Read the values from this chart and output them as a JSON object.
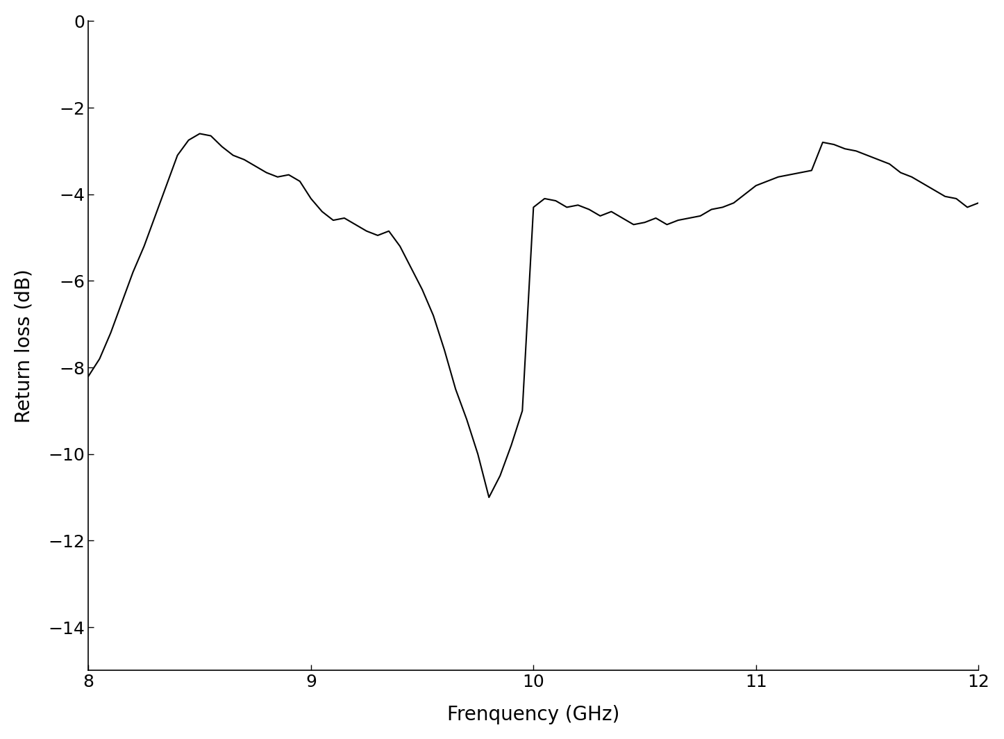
{
  "x": [
    8.0,
    8.05,
    8.1,
    8.15,
    8.2,
    8.25,
    8.3,
    8.35,
    8.4,
    8.45,
    8.5,
    8.55,
    8.6,
    8.65,
    8.7,
    8.75,
    8.8,
    8.85,
    8.9,
    8.95,
    9.0,
    9.05,
    9.1,
    9.15,
    9.2,
    9.25,
    9.3,
    9.35,
    9.4,
    9.45,
    9.5,
    9.55,
    9.6,
    9.65,
    9.7,
    9.75,
    9.8,
    9.85,
    9.9,
    9.95,
    10.0,
    10.05,
    10.1,
    10.15,
    10.2,
    10.25,
    10.3,
    10.35,
    10.4,
    10.45,
    10.5,
    10.55,
    10.6,
    10.65,
    10.7,
    10.75,
    10.8,
    10.85,
    10.9,
    10.95,
    11.0,
    11.05,
    11.1,
    11.15,
    11.2,
    11.25,
    11.3,
    11.35,
    11.4,
    11.45,
    11.5,
    11.55,
    11.6,
    11.65,
    11.7,
    11.75,
    11.8,
    11.85,
    11.9,
    11.95,
    12.0
  ],
  "y": [
    -8.2,
    -7.8,
    -7.2,
    -6.5,
    -5.8,
    -5.2,
    -4.5,
    -3.8,
    -3.1,
    -2.75,
    -2.6,
    -2.65,
    -2.9,
    -3.1,
    -3.2,
    -3.35,
    -3.5,
    -3.6,
    -3.55,
    -3.7,
    -4.1,
    -4.4,
    -4.6,
    -4.55,
    -4.7,
    -4.85,
    -4.95,
    -4.85,
    -5.2,
    -5.7,
    -6.2,
    -6.8,
    -7.6,
    -8.5,
    -9.2,
    -10.0,
    -11.0,
    -10.5,
    -9.8,
    -9.0,
    -4.3,
    -4.1,
    -4.15,
    -4.3,
    -4.25,
    -4.35,
    -4.5,
    -4.4,
    -4.55,
    -4.7,
    -4.65,
    -4.55,
    -4.7,
    -4.6,
    -4.55,
    -4.5,
    -4.35,
    -4.3,
    -4.2,
    -4.0,
    -3.8,
    -3.7,
    -3.6,
    -3.55,
    -3.5,
    -3.45,
    -2.8,
    -2.85,
    -2.95,
    -3.0,
    -3.1,
    -3.2,
    -3.3,
    -3.5,
    -3.6,
    -3.75,
    -3.9,
    -4.05,
    -4.1,
    -4.3,
    -4.2
  ],
  "xlabel": "Frenquency (GHz)",
  "ylabel": "Return loss (dB)",
  "xlim": [
    8,
    12
  ],
  "ylim": [
    -15,
    0
  ],
  "xticks": [
    8,
    9,
    10,
    11,
    12
  ],
  "yticks": [
    0,
    -2,
    -4,
    -6,
    -8,
    -10,
    -12,
    -14
  ],
  "line_color": "#000000",
  "line_width": 1.5,
  "background_color": "#ffffff",
  "xlabel_fontsize": 20,
  "ylabel_fontsize": 20,
  "tick_fontsize": 18,
  "figsize": [
    14.46,
    10.64
  ],
  "dpi": 100
}
